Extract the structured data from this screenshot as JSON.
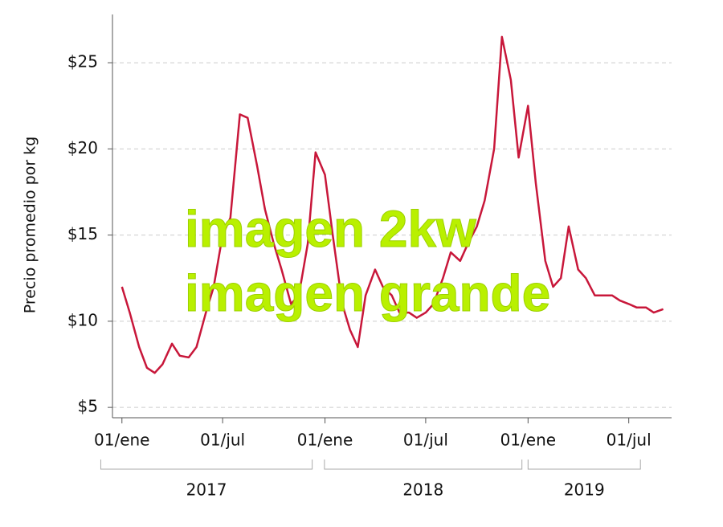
{
  "chart_data": {
    "type": "line",
    "y_label": "Precio promedio por kg",
    "annotations": [
      "imagen 2kw",
      "imagen grande"
    ],
    "x": [
      "2017-01-01",
      "2017-01-15",
      "2017-02-01",
      "2017-02-15",
      "2017-03-01",
      "2017-03-15",
      "2017-04-01",
      "2017-04-15",
      "2017-05-01",
      "2017-05-15",
      "2017-06-01",
      "2017-06-15",
      "2017-07-01",
      "2017-07-15",
      "2017-08-01",
      "2017-08-15",
      "2017-09-01",
      "2017-09-15",
      "2017-10-01",
      "2017-10-15",
      "2017-11-01",
      "2017-11-15",
      "2017-12-01",
      "2017-12-15",
      "2018-01-01",
      "2018-01-15",
      "2018-02-01",
      "2018-02-15",
      "2018-03-01",
      "2018-03-15",
      "2018-04-01",
      "2018-04-15",
      "2018-05-01",
      "2018-05-15",
      "2018-06-01",
      "2018-06-15",
      "2018-07-01",
      "2018-07-15",
      "2018-08-01",
      "2018-08-15",
      "2018-09-01",
      "2018-09-15",
      "2018-10-01",
      "2018-10-15",
      "2018-11-01",
      "2018-11-15",
      "2018-12-01",
      "2018-12-15",
      "2019-01-01",
      "2019-01-15",
      "2019-02-01",
      "2019-02-15",
      "2019-03-01",
      "2019-03-15",
      "2019-04-01",
      "2019-04-15",
      "2019-05-01",
      "2019-05-15",
      "2019-06-01",
      "2019-06-15",
      "2019-07-01",
      "2019-07-15",
      "2019-08-01",
      "2019-08-15",
      "2019-09-01"
    ],
    "series": [
      {
        "color": "#c8173a",
        "values": [
          12.0,
          10.5,
          8.5,
          7.3,
          7.0,
          7.5,
          8.7,
          8.0,
          7.9,
          8.5,
          10.5,
          12.0,
          15.0,
          16.0,
          22.0,
          21.8,
          19.0,
          16.5,
          14.5,
          13.0,
          11.0,
          11.5,
          14.5,
          19.8,
          18.5,
          15.0,
          11.0,
          9.5,
          8.5,
          11.5,
          13.0,
          12.0,
          11.5,
          10.5,
          10.5,
          10.2,
          10.5,
          11.0,
          12.5,
          14.0,
          13.5,
          14.5,
          15.5,
          17.0,
          20.0,
          26.5,
          24.0,
          19.5,
          22.5,
          18.0,
          13.5,
          12.0,
          12.5,
          15.5,
          13.0,
          12.5,
          11.5,
          11.5,
          11.5,
          11.2,
          11.0,
          10.8,
          10.8,
          10.5,
          10.7
        ]
      }
    ],
    "xlim": [
      "2016-12-15",
      "2019-09-16"
    ],
    "xticks": [
      {
        "value": "2017-01-01",
        "label": "01/ene"
      },
      {
        "value": "2017-07-01",
        "label": "01/jul"
      },
      {
        "value": "2018-01-01",
        "label": "01/ene"
      },
      {
        "value": "2018-07-01",
        "label": "01/jul"
      },
      {
        "value": "2019-01-01",
        "label": "01/ene"
      },
      {
        "value": "2019-07-01",
        "label": "01/jul"
      }
    ],
    "x_groups": [
      {
        "label": "2017",
        "start": "2016-11-24",
        "end": "2017-12-09"
      },
      {
        "label": "2018",
        "start": "2017-12-31",
        "end": "2018-12-21"
      },
      {
        "label": "2019",
        "start": "2019-01-01",
        "end": "2019-07-22"
      }
    ],
    "ylim": [
      4.4,
      27.8
    ],
    "yticks": [
      {
        "value": 5,
        "label": "$5"
      },
      {
        "value": 10,
        "label": "$10"
      },
      {
        "value": 15,
        "label": "$15"
      },
      {
        "value": 20,
        "label": "$20"
      },
      {
        "value": 25,
        "label": "$25"
      }
    ],
    "grid": true
  }
}
